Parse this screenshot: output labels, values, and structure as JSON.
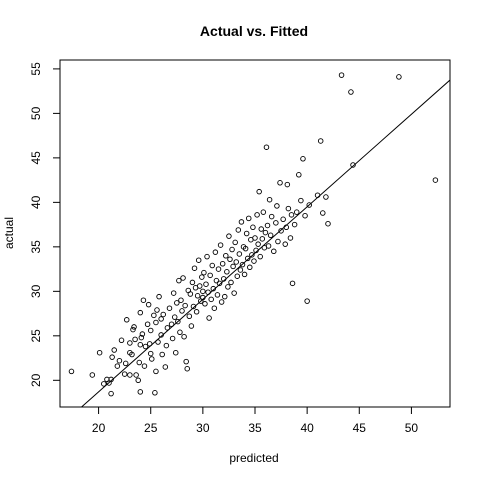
{
  "chart_data": {
    "type": "scatter",
    "title": "Actual vs. Fitted",
    "xlabel": "predicted",
    "ylabel": "actual",
    "xlim": [
      16.3,
      53.7
    ],
    "ylim": [
      17,
      56
    ],
    "x_ticks": [
      20,
      25,
      30,
      35,
      40,
      45,
      50
    ],
    "y_ticks": [
      20,
      25,
      30,
      35,
      40,
      45,
      50,
      55
    ],
    "grid": false,
    "legend": "none",
    "marker": "open-circle",
    "fit_line": {
      "intercept": -2.1,
      "slope": 1.04
    },
    "series": [
      {
        "points": [
          [
            17.4,
            21.0
          ],
          [
            19.4,
            20.6
          ],
          [
            20.1,
            23.1
          ],
          [
            20.5,
            19.6
          ],
          [
            20.8,
            20.1
          ],
          [
            21.0,
            19.7
          ],
          [
            21.2,
            18.5
          ],
          [
            21.2,
            20.1
          ],
          [
            21.3,
            22.6
          ],
          [
            21.5,
            23.4
          ],
          [
            21.8,
            21.6
          ],
          [
            22.0,
            22.2
          ],
          [
            22.2,
            24.5
          ],
          [
            22.5,
            20.7
          ],
          [
            22.6,
            21.9
          ],
          [
            22.7,
            26.8
          ],
          [
            23.0,
            20.6
          ],
          [
            23.0,
            23.1
          ],
          [
            23.0,
            24.2
          ],
          [
            23.2,
            22.9
          ],
          [
            23.3,
            25.7
          ],
          [
            23.4,
            26.0
          ],
          [
            23.5,
            24.6
          ],
          [
            23.6,
            20.6
          ],
          [
            23.8,
            20.0
          ],
          [
            23.9,
            22.0
          ],
          [
            24.0,
            18.7
          ],
          [
            24.0,
            24.0
          ],
          [
            24.0,
            27.6
          ],
          [
            24.1,
            24.8
          ],
          [
            24.2,
            25.2
          ],
          [
            24.3,
            29.0
          ],
          [
            24.4,
            21.6
          ],
          [
            24.5,
            23.8
          ],
          [
            24.7,
            26.3
          ],
          [
            24.8,
            28.5
          ],
          [
            24.9,
            24.1
          ],
          [
            25.0,
            23.0
          ],
          [
            25.0,
            25.6
          ],
          [
            25.1,
            22.4
          ],
          [
            25.3,
            27.3
          ],
          [
            25.4,
            18.6
          ],
          [
            25.5,
            21.0
          ],
          [
            25.5,
            26.5
          ],
          [
            25.6,
            27.9
          ],
          [
            25.7,
            24.3
          ],
          [
            25.8,
            29.4
          ],
          [
            26.0,
            25.1
          ],
          [
            26.0,
            26.9
          ],
          [
            26.1,
            22.9
          ],
          [
            26.2,
            27.4
          ],
          [
            26.4,
            21.5
          ],
          [
            26.5,
            23.9
          ],
          [
            26.6,
            25.9
          ],
          [
            26.8,
            28.1
          ],
          [
            27.0,
            26.3
          ],
          [
            27.1,
            24.7
          ],
          [
            27.2,
            29.8
          ],
          [
            27.3,
            27.1
          ],
          [
            27.4,
            23.1
          ],
          [
            27.5,
            28.7
          ],
          [
            27.6,
            26.6
          ],
          [
            27.7,
            31.2
          ],
          [
            27.8,
            25.4
          ],
          [
            27.9,
            29.0
          ],
          [
            28.0,
            27.8
          ],
          [
            28.1,
            31.5
          ],
          [
            28.2,
            24.9
          ],
          [
            28.3,
            28.4
          ],
          [
            28.4,
            22.1
          ],
          [
            28.5,
            21.3
          ],
          [
            28.6,
            30.1
          ],
          [
            28.7,
            27.2
          ],
          [
            28.8,
            29.7
          ],
          [
            28.9,
            26.1
          ],
          [
            29.0,
            31.0
          ],
          [
            29.1,
            28.3
          ],
          [
            29.2,
            32.6
          ],
          [
            29.3,
            30.4
          ],
          [
            29.4,
            27.7
          ],
          [
            29.5,
            29.5
          ],
          [
            29.6,
            33.5
          ],
          [
            29.7,
            30.6
          ],
          [
            29.8,
            28.9
          ],
          [
            29.9,
            31.6
          ],
          [
            30.0,
            29.3
          ],
          [
            30.0,
            30.0
          ],
          [
            30.1,
            32.1
          ],
          [
            30.2,
            28.6
          ],
          [
            30.3,
            30.8
          ],
          [
            30.4,
            33.9
          ],
          [
            30.5,
            29.9
          ],
          [
            30.6,
            27.0
          ],
          [
            30.7,
            31.8
          ],
          [
            30.8,
            29.1
          ],
          [
            30.9,
            32.9
          ],
          [
            31.0,
            30.3
          ],
          [
            31.1,
            28.1
          ],
          [
            31.2,
            34.4
          ],
          [
            31.3,
            31.2
          ],
          [
            31.4,
            29.6
          ],
          [
            31.5,
            32.5
          ],
          [
            31.6,
            30.9
          ],
          [
            31.7,
            35.2
          ],
          [
            31.8,
            28.8
          ],
          [
            31.9,
            33.1
          ],
          [
            32.0,
            31.4
          ],
          [
            32.1,
            29.4
          ],
          [
            32.2,
            34.0
          ],
          [
            32.3,
            32.2
          ],
          [
            32.4,
            30.5
          ],
          [
            32.5,
            36.2
          ],
          [
            32.6,
            33.6
          ],
          [
            32.7,
            31.0
          ],
          [
            32.8,
            34.7
          ],
          [
            32.9,
            32.8
          ],
          [
            33.0,
            29.8
          ],
          [
            33.1,
            35.5
          ],
          [
            33.2,
            33.3
          ],
          [
            33.3,
            31.7
          ],
          [
            33.4,
            36.9
          ],
          [
            33.5,
            34.2
          ],
          [
            33.6,
            32.4
          ],
          [
            33.7,
            37.8
          ],
          [
            33.8,
            33.0
          ],
          [
            33.9,
            35.0
          ],
          [
            34.0,
            31.9
          ],
          [
            34.1,
            34.8
          ],
          [
            34.2,
            36.5
          ],
          [
            34.3,
            33.7
          ],
          [
            34.4,
            38.2
          ],
          [
            34.5,
            32.7
          ],
          [
            34.6,
            35.8
          ],
          [
            34.7,
            34.1
          ],
          [
            34.8,
            37.2
          ],
          [
            34.9,
            33.4
          ],
          [
            35.0,
            36.0
          ],
          [
            35.1,
            34.6
          ],
          [
            35.2,
            38.6
          ],
          [
            35.3,
            35.3
          ],
          [
            35.4,
            41.2
          ],
          [
            35.5,
            33.9
          ],
          [
            35.6,
            37.0
          ],
          [
            35.7,
            35.9
          ],
          [
            35.8,
            38.9
          ],
          [
            35.9,
            34.9
          ],
          [
            36.0,
            36.6
          ],
          [
            36.1,
            46.2
          ],
          [
            36.2,
            37.4
          ],
          [
            36.3,
            35.1
          ],
          [
            36.4,
            40.3
          ],
          [
            36.5,
            36.3
          ],
          [
            36.6,
            38.4
          ],
          [
            36.8,
            34.5
          ],
          [
            37.0,
            37.7
          ],
          [
            37.1,
            39.6
          ],
          [
            37.2,
            35.6
          ],
          [
            37.4,
            42.2
          ],
          [
            37.5,
            36.8
          ],
          [
            37.7,
            38.1
          ],
          [
            37.9,
            35.3
          ],
          [
            38.0,
            37.2
          ],
          [
            38.1,
            42.0
          ],
          [
            38.2,
            39.3
          ],
          [
            38.4,
            36.0
          ],
          [
            38.5,
            38.6
          ],
          [
            38.6,
            30.9
          ],
          [
            38.8,
            37.5
          ],
          [
            39.0,
            38.9
          ],
          [
            39.2,
            43.1
          ],
          [
            39.4,
            40.2
          ],
          [
            39.6,
            44.9
          ],
          [
            39.8,
            38.5
          ],
          [
            40.0,
            28.9
          ],
          [
            40.2,
            39.7
          ],
          [
            41.0,
            40.8
          ],
          [
            41.3,
            46.9
          ],
          [
            41.5,
            38.8
          ],
          [
            41.8,
            40.6
          ],
          [
            42.0,
            37.6
          ],
          [
            43.3,
            54.3
          ],
          [
            44.2,
            52.4
          ],
          [
            44.4,
            44.2
          ],
          [
            48.8,
            54.1
          ],
          [
            52.3,
            42.5
          ]
        ]
      }
    ]
  }
}
